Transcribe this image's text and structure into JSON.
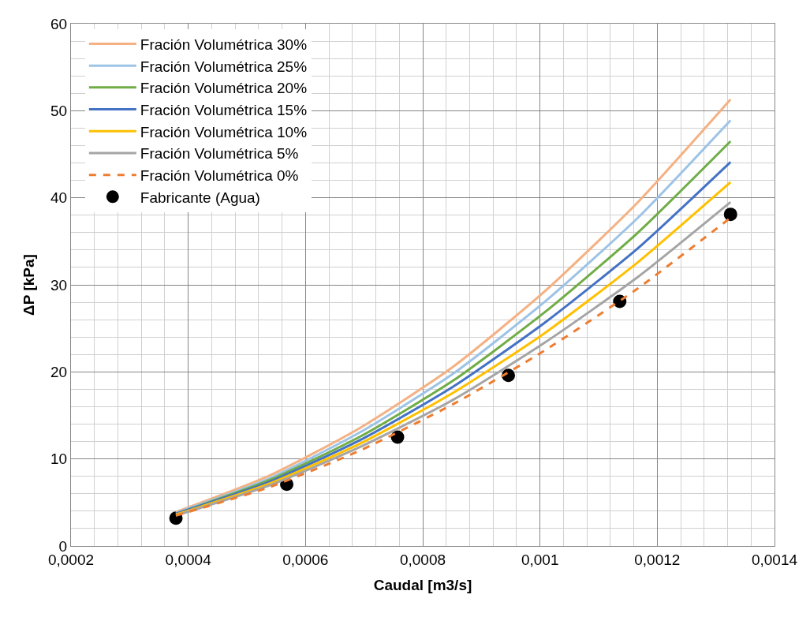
{
  "chart_data": {
    "type": "line",
    "xlabel": "Caudal [m3/s]",
    "ylabel": "ΔP [kPa]",
    "xlim": [
      0.0002,
      0.0014
    ],
    "xticks": [
      {
        "value": 0.0002,
        "label": "0,0002"
      },
      {
        "value": 0.0004,
        "label": "0,0004"
      },
      {
        "value": 0.0006,
        "label": "0,0006"
      },
      {
        "value": 0.0008,
        "label": "0,0008"
      },
      {
        "value": 0.001,
        "label": "0,001"
      },
      {
        "value": 0.0012,
        "label": "0,0012"
      },
      {
        "value": 0.0014,
        "label": "0,0014"
      }
    ],
    "ylim": [
      0,
      60
    ],
    "yticks": [
      0,
      10,
      20,
      30,
      40,
      50,
      60
    ],
    "grid": true,
    "legend": "top left",
    "marker": "none",
    "line_style": "solid",
    "x": [
      0.000379,
      0.000536,
      0.000694,
      0.000852,
      0.001009,
      0.001167,
      0.001325
    ],
    "series": [
      {
        "name": "Fración Volumétrica 30%",
        "color": "#f4b183",
        "values": [
          3.9,
          8.0,
          13.6,
          20.6,
          29.3,
          39.5,
          51.3
        ]
      },
      {
        "name": "Fración Volumétrica 25%",
        "color": "#9dc3e6",
        "values": [
          3.8,
          7.7,
          13.1,
          19.8,
          28.1,
          37.7,
          48.9
        ]
      },
      {
        "name": "Fración Volumétrica 20%",
        "color": "#70ad47",
        "values": [
          3.7,
          7.5,
          12.6,
          19.0,
          26.9,
          36.0,
          46.5
        ]
      },
      {
        "name": "Fración Volumétrica 15%",
        "color": "#4472c4",
        "values": [
          3.7,
          7.3,
          12.2,
          18.3,
          25.7,
          34.2,
          44.1
        ]
      },
      {
        "name": "Fración Volumétrica 10%",
        "color": "#ffc000",
        "values": [
          3.6,
          7.1,
          11.8,
          17.6,
          24.5,
          32.6,
          41.8
        ]
      },
      {
        "name": "Fración Volumétrica 5%",
        "color": "#a5a5a5",
        "values": [
          3.5,
          6.9,
          11.4,
          16.8,
          23.4,
          30.9,
          39.5
        ]
      },
      {
        "name": "Fración Volumétrica 0%",
        "color": "#ed7d31",
        "line_style": "dashed",
        "values": [
          3.5,
          6.7,
          11.0,
          16.3,
          22.5,
          29.6,
          37.7
        ]
      },
      {
        "name": "Fabricante (Agua)",
        "type": "scatter",
        "marker": "circle",
        "color": "#000000",
        "x": [
          0.000379,
          0.000568,
          0.000757,
          0.000946,
          0.001136,
          0.001325
        ],
        "values": [
          3.2,
          7.1,
          12.5,
          19.6,
          28.1,
          38.1
        ]
      }
    ]
  }
}
